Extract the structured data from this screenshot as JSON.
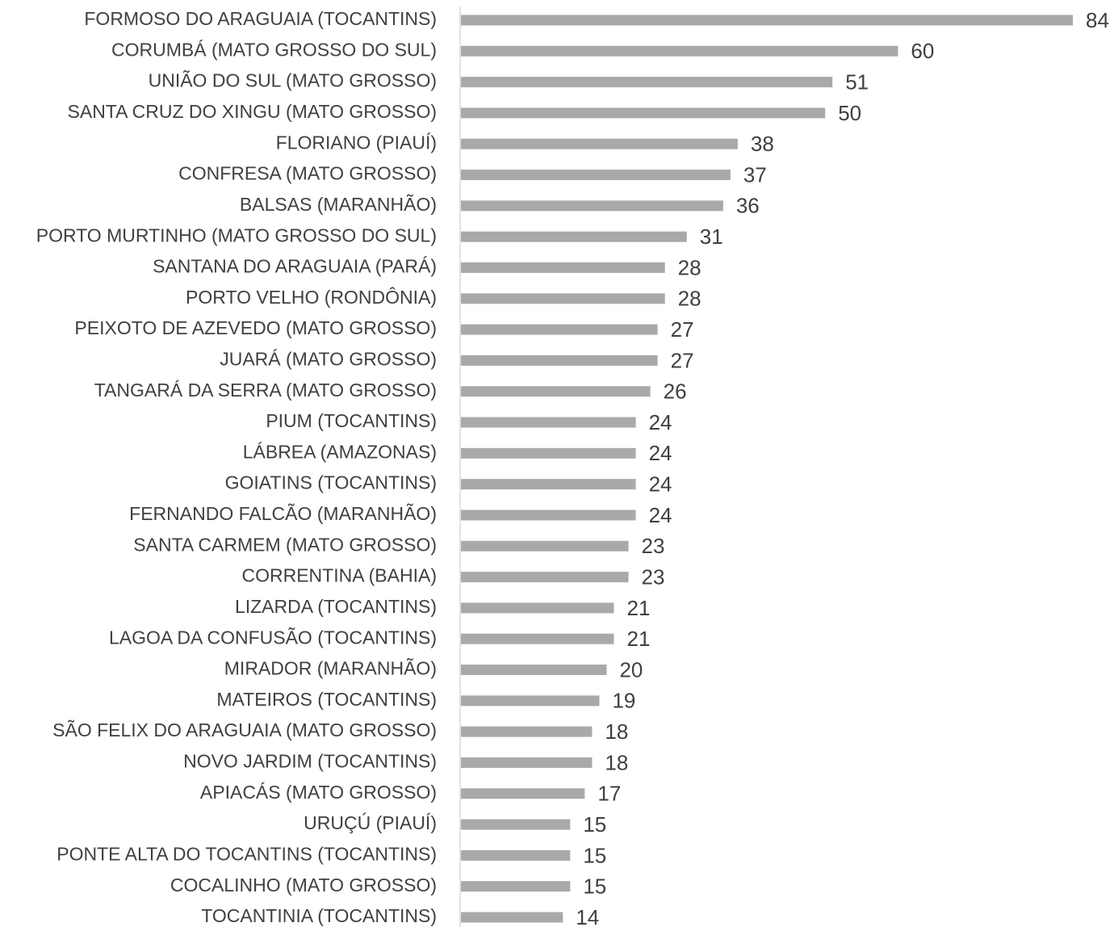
{
  "chart_data": {
    "type": "bar",
    "orientation": "horizontal",
    "color": "#aba8a8",
    "categories": [
      "FORMOSO DO ARAGUAIA (TOCANTINS)",
      "CORUMBÁ (MATO GROSSO DO SUL)",
      "UNIÃO DO SUL (MATO GROSSO)",
      "SANTA CRUZ DO XINGU (MATO GROSSO)",
      "FLORIANO (PIAUÍ)",
      "CONFRESA (MATO GROSSO)",
      "BALSAS (MARANHÃO)",
      "PORTO MURTINHO (MATO GROSSO DO SUL)",
      "SANTANA DO ARAGUAIA (PARÁ)",
      "PORTO VELHO (RONDÔNIA)",
      "PEIXOTO DE AZEVEDO (MATO GROSSO)",
      "JUARÁ (MATO GROSSO)",
      "TANGARÁ DA SERRA (MATO GROSSO)",
      "PIUM (TOCANTINS)",
      "LÁBREA (AMAZONAS)",
      "GOIATINS (TOCANTINS)",
      "FERNANDO FALCÃO (MARANHÃO)",
      "SANTA CARMEM (MATO GROSSO)",
      "CORRENTINA (BAHIA)",
      "LIZARDA (TOCANTINS)",
      "LAGOA DA CONFUSÃO (TOCANTINS)",
      "MIRADOR (MARANHÃO)",
      "MATEIROS (TOCANTINS)",
      "SÃO FELIX DO ARAGUAIA (MATO GROSSO)",
      "NOVO JARDIM (TOCANTINS)",
      "APIACÁS (MATO GROSSO)",
      "URUÇÚ (PIAUÍ)",
      "PONTE ALTA DO TOCANTINS (TOCANTINS)",
      "COCALINHO (MATO GROSSO)",
      "TOCANTINIA (TOCANTINS)"
    ],
    "values": [
      84,
      60,
      51,
      50,
      38,
      37,
      36,
      31,
      28,
      28,
      27,
      27,
      26,
      24,
      24,
      24,
      24,
      23,
      23,
      21,
      21,
      20,
      19,
      18,
      18,
      17,
      15,
      15,
      15,
      14
    ]
  }
}
